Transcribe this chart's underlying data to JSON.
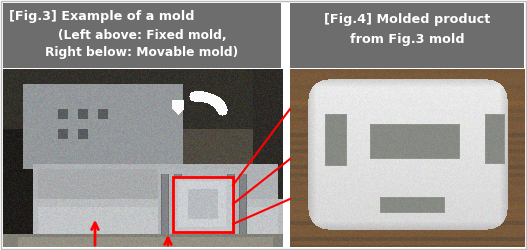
{
  "fig3_caption_line1": "[Fig.3] Example of a mold",
  "fig3_caption_line2": "(Left above: Fixed mold,",
  "fig3_caption_line3": "Right below: Movable mold)",
  "fig4_caption_line1": "[Fig.4] Molded product",
  "fig4_caption_line2": "from Fig.3 mold",
  "caption_bg_color": "#6d6d6d",
  "caption_text_color": "#ffffff",
  "outer_bg_color": "#ffffff",
  "fig_width": 5.27,
  "fig_height": 2.5,
  "dpi": 100,
  "red_color": "#ff0000",
  "white_color": "#ffffff"
}
